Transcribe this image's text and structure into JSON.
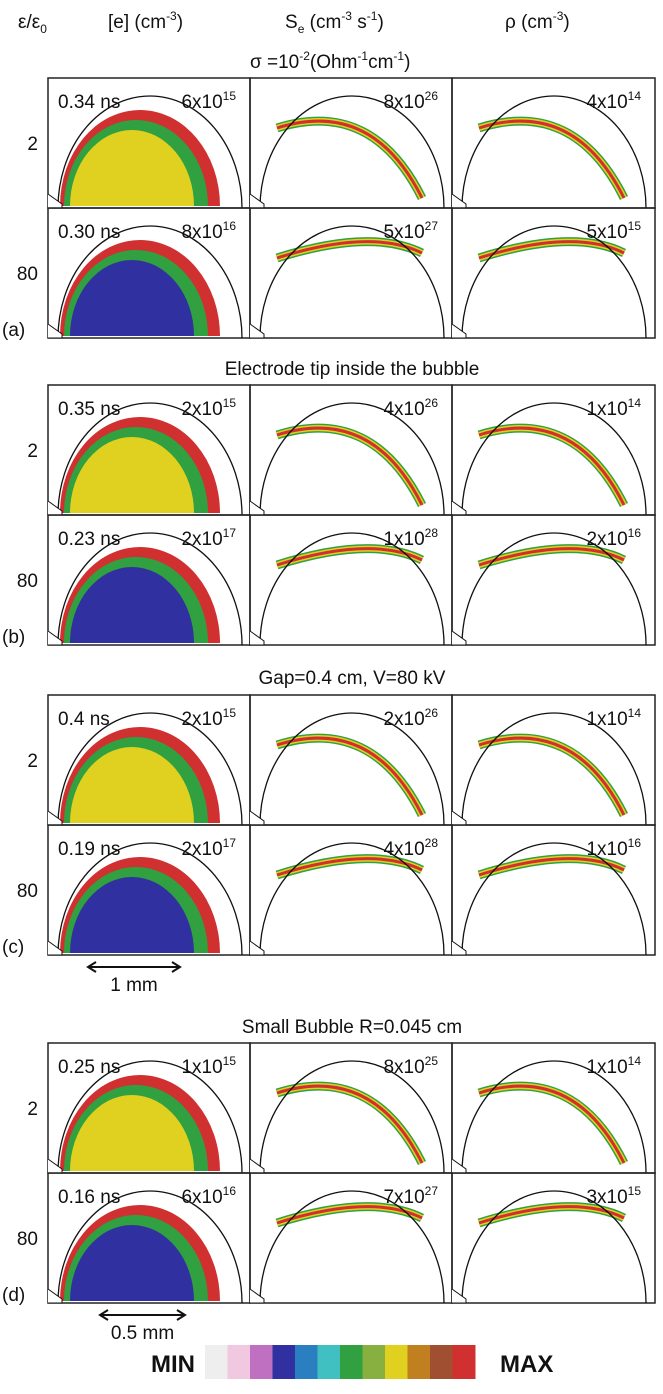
{
  "column_headers": [
    [
      "ε/ε",
      "0"
    ],
    [
      "[e] (cm",
      "-3",
      ")"
    ],
    [
      "S",
      "e",
      " (cm",
      "-3",
      " s",
      "-1",
      ")"
    ],
    [
      "ρ (cm",
      "-3",
      ")"
    ]
  ],
  "conductivity": [
    "σ =10",
    "-2",
    "(Ohm",
    "-1",
    "cm",
    "-1",
    ")"
  ],
  "sections": [
    {
      "label": "(a)",
      "rows": [
        {
          "eps": "2",
          "time": "0.34 ns",
          "values": [
            {
              "mantissa": "6x10",
              "exp": "15"
            },
            {
              "mantissa": "8x10",
              "exp": "26"
            },
            {
              "mantissa": "4x10",
              "exp": "14"
            }
          ]
        },
        {
          "eps": "80",
          "time": "0.30 ns",
          "values": [
            {
              "mantissa": "8x10",
              "exp": "16"
            },
            {
              "mantissa": "5x10",
              "exp": "27"
            },
            {
              "mantissa": "5x10",
              "exp": "15"
            }
          ]
        }
      ]
    },
    {
      "title": "Electrode tip inside the bubble",
      "label": "(b)",
      "rows": [
        {
          "eps": "2",
          "time": "0.35 ns",
          "values": [
            {
              "mantissa": "2x10",
              "exp": "15"
            },
            {
              "mantissa": "4x10",
              "exp": "26"
            },
            {
              "mantissa": "1x10",
              "exp": "14"
            }
          ]
        },
        {
          "eps": "80",
          "time": "0.23 ns",
          "values": [
            {
              "mantissa": "2x10",
              "exp": "17"
            },
            {
              "mantissa": "1x10",
              "exp": "28"
            },
            {
              "mantissa": "2x10",
              "exp": "16"
            }
          ]
        }
      ]
    },
    {
      "title": "Gap=0.4 cm, V=80 kV",
      "label": "(c)",
      "scale_bar": "1 mm",
      "rows": [
        {
          "eps": "2",
          "time": "0.4 ns",
          "values": [
            {
              "mantissa": "2x10",
              "exp": "15"
            },
            {
              "mantissa": "2x10",
              "exp": "26"
            },
            {
              "mantissa": "1x10",
              "exp": "14"
            }
          ]
        },
        {
          "eps": "80",
          "time": "0.19 ns",
          "values": [
            {
              "mantissa": "2x10",
              "exp": "17"
            },
            {
              "mantissa": "4x10",
              "exp": "28"
            },
            {
              "mantissa": "1x10",
              "exp": "16"
            }
          ]
        }
      ]
    },
    {
      "title": "Small Bubble R=0.045 cm",
      "label": "(d)",
      "scale_bar": "0.5 mm",
      "rows": [
        {
          "eps": "2",
          "time": "0.25 ns",
          "values": [
            {
              "mantissa": "1x10",
              "exp": "15"
            },
            {
              "mantissa": "8x10",
              "exp": "25"
            },
            {
              "mantissa": "1x10",
              "exp": "14"
            }
          ]
        },
        {
          "eps": "80",
          "time": "0.16 ns",
          "values": [
            {
              "mantissa": "6x10",
              "exp": "16"
            },
            {
              "mantissa": "7x10",
              "exp": "27"
            },
            {
              "mantissa": "3x10",
              "exp": "15"
            }
          ]
        }
      ]
    }
  ],
  "colorbar": {
    "min": "MIN",
    "max": "MAX",
    "colors": [
      "#eeeeee",
      "#f0c8e0",
      "#c070c0",
      "#3030a0",
      "#2a7fc0",
      "#40c0c0",
      "#30a040",
      "#88b040",
      "#e0d020",
      "#c08020",
      "#a05030",
      "#d03030"
    ]
  }
}
